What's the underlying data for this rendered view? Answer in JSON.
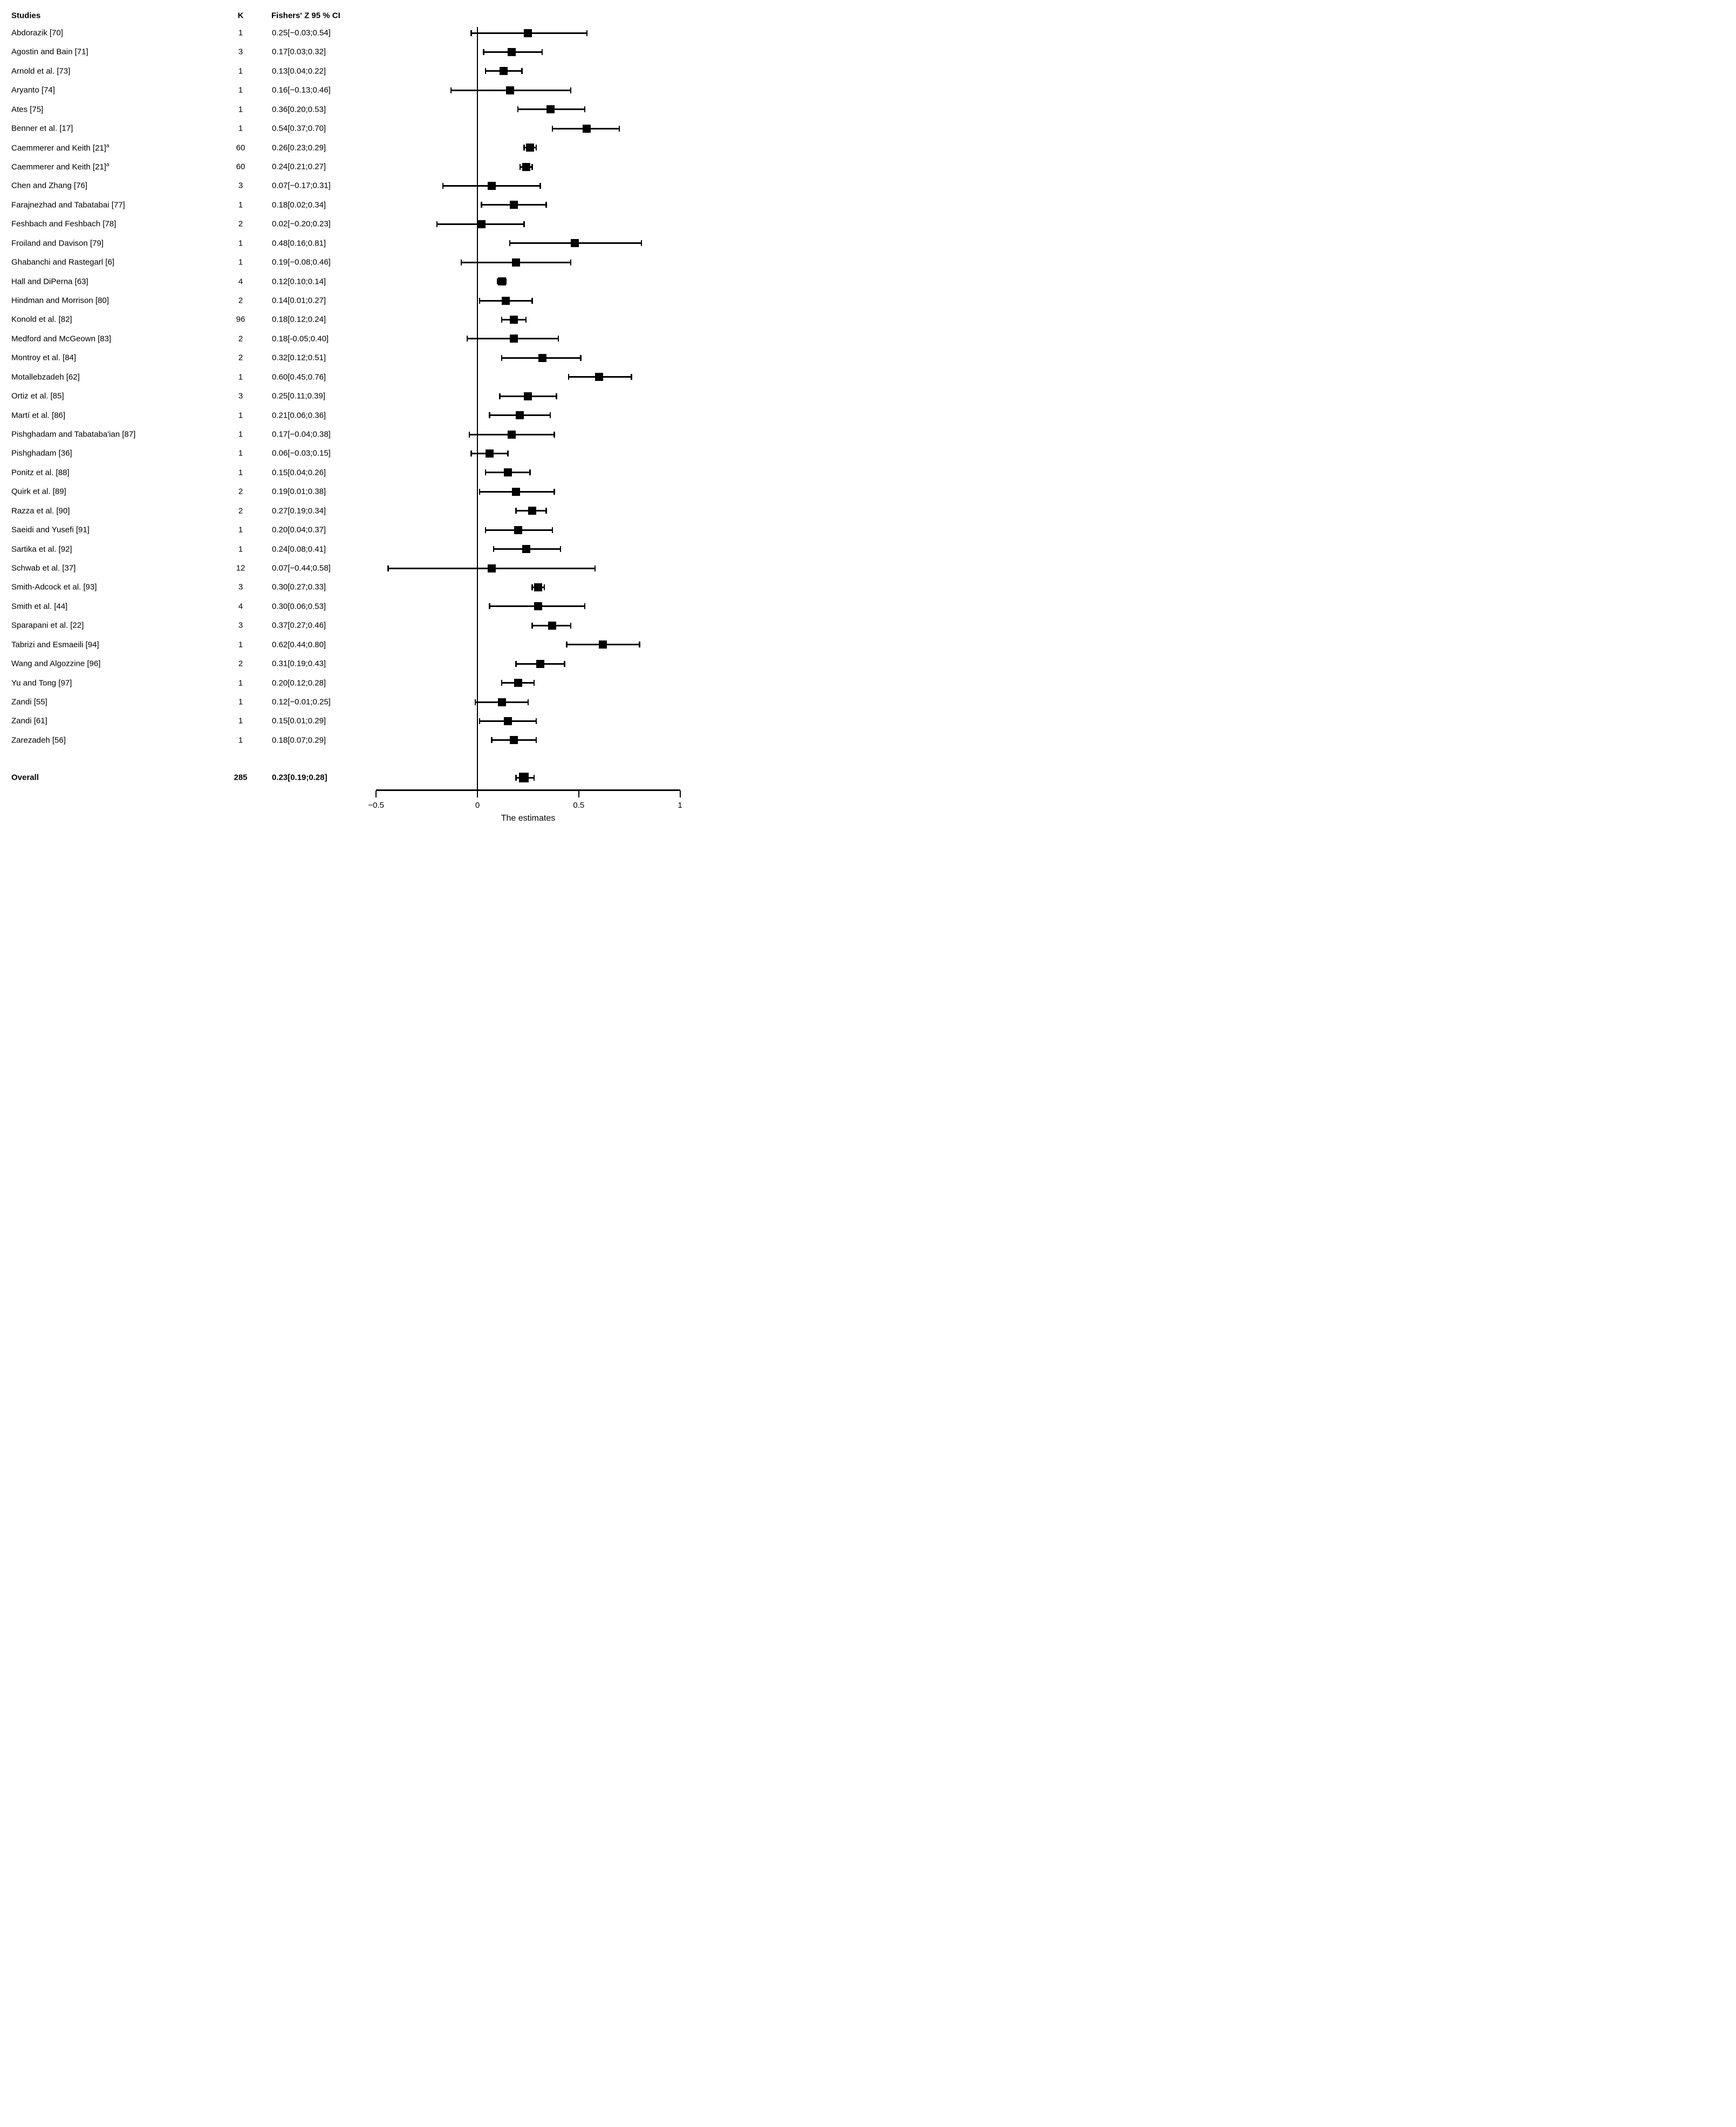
{
  "columns": {
    "studies": "Studies",
    "k": "K",
    "ci": "Fishers' Z 95 % CI"
  },
  "colors": {
    "marker": "#000000",
    "line": "#000000",
    "text": "#000000",
    "background": "#ffffff"
  },
  "chart_data": {
    "type": "forest",
    "xlabel": "The estimates",
    "xlim": [
      -0.5,
      1
    ],
    "x_ticks": [
      {
        "v": -0.5,
        "label": "−0.5"
      },
      {
        "v": 0,
        "label": "0"
      },
      {
        "v": 0.5,
        "label": "0.5"
      },
      {
        "v": 1,
        "label": "1"
      }
    ],
    "studies": [
      {
        "label": "Abdorazik [70]",
        "k": 1,
        "est": 0.25,
        "lo": -0.03,
        "hi": 0.54,
        "ci_text": "0.25[−0.03;0.54]"
      },
      {
        "label": "Agostin and Bain [71]",
        "k": 3,
        "est": 0.17,
        "lo": 0.03,
        "hi": 0.32,
        "ci_text": "0.17[0.03;0.32]"
      },
      {
        "label": "Arnold et al. [73]",
        "k": 1,
        "est": 0.13,
        "lo": 0.04,
        "hi": 0.22,
        "ci_text": "0.13[0.04;0.22]"
      },
      {
        "label": "Aryanto [74]",
        "k": 1,
        "est": 0.16,
        "lo": -0.13,
        "hi": 0.46,
        "ci_text": "0.16[−0.13;0.46]"
      },
      {
        "label": "Ates [75]",
        "k": 1,
        "est": 0.36,
        "lo": 0.2,
        "hi": 0.53,
        "ci_text": "0.36[0.20;0.53]"
      },
      {
        "label": "Benner et al. [17]",
        "k": 1,
        "est": 0.54,
        "lo": 0.37,
        "hi": 0.7,
        "ci_text": "0.54[0.37;0.70]"
      },
      {
        "label": "Caemmerer and Keith [21]",
        "note": "a",
        "k": 60,
        "est": 0.26,
        "lo": 0.23,
        "hi": 0.29,
        "ci_text": "0.26[0.23;0.29]"
      },
      {
        "label": "Caemmerer and Keith [21]",
        "note": "a",
        "k": 60,
        "est": 0.24,
        "lo": 0.21,
        "hi": 0.27,
        "ci_text": "0.24[0.21;0.27]"
      },
      {
        "label": "Chen and Zhang [76]",
        "k": 3,
        "est": 0.07,
        "lo": -0.17,
        "hi": 0.31,
        "ci_text": "0.07[−0.17;0.31]"
      },
      {
        "label": "Farajnezhad and Tabatabai [77]",
        "k": 1,
        "est": 0.18,
        "lo": 0.02,
        "hi": 0.34,
        "ci_text": "0.18[0.02;0.34]"
      },
      {
        "label": "Feshbach and Feshbach [78]",
        "k": 2,
        "est": 0.02,
        "lo": -0.2,
        "hi": 0.23,
        "ci_text": "0.02[−0.20;0.23]"
      },
      {
        "label": "Froiland and Davison [79]",
        "k": 1,
        "est": 0.48,
        "lo": 0.16,
        "hi": 0.81,
        "ci_text": "0.48[0.16;0.81]"
      },
      {
        "label": "Ghabanchi and Rastegarl [6]",
        "k": 1,
        "est": 0.19,
        "lo": -0.08,
        "hi": 0.46,
        "ci_text": "0.19[−0.08;0.46]"
      },
      {
        "label": "Hall and DiPerna [63]",
        "k": 4,
        "est": 0.12,
        "lo": 0.1,
        "hi": 0.14,
        "ci_text": "0.12[0.10;0.14]"
      },
      {
        "label": "Hindman and Morrison [80]",
        "k": 2,
        "est": 0.14,
        "lo": 0.01,
        "hi": 0.27,
        "ci_text": "0.14[0.01;0.27]"
      },
      {
        "label": "Konold et al. [82]",
        "k": 96,
        "est": 0.18,
        "lo": 0.12,
        "hi": 0.24,
        "ci_text": "0.18[0.12;0.24]"
      },
      {
        "label": "Medford and McGeown [83]",
        "k": 2,
        "est": 0.18,
        "lo": -0.05,
        "hi": 0.4,
        "ci_text": "0.18[-0.05;0.40]"
      },
      {
        "label": "Montroy et al. [84]",
        "k": 2,
        "est": 0.32,
        "lo": 0.12,
        "hi": 0.51,
        "ci_text": "0.32[0.12;0.51]"
      },
      {
        "label": "Motallebzadeh [62]",
        "k": 1,
        "est": 0.6,
        "lo": 0.45,
        "hi": 0.76,
        "ci_text": "0.60[0.45;0.76]"
      },
      {
        "label": "Ortiz et al. [85]",
        "k": 3,
        "est": 0.25,
        "lo": 0.11,
        "hi": 0.39,
        "ci_text": "0.25[0.11;0.39]"
      },
      {
        "label": "Martí et al. [86]",
        "k": 1,
        "est": 0.21,
        "lo": 0.06,
        "hi": 0.36,
        "ci_text": "0.21[0.06;0.36]"
      },
      {
        "label": "Pishghadam and Tabataba'ian [87]",
        "k": 1,
        "est": 0.17,
        "lo": -0.04,
        "hi": 0.38,
        "ci_text": "0.17[−0.04;0.38]"
      },
      {
        "label": "Pishghadam [36]",
        "k": 1,
        "est": 0.06,
        "lo": -0.03,
        "hi": 0.15,
        "ci_text": "0.06[−0.03;0.15]"
      },
      {
        "label": "Ponitz et al. [88]",
        "k": 1,
        "est": 0.15,
        "lo": 0.04,
        "hi": 0.26,
        "ci_text": "0.15[0.04;0.26]"
      },
      {
        "label": "Quirk et al. [89]",
        "k": 2,
        "est": 0.19,
        "lo": 0.01,
        "hi": 0.38,
        "ci_text": "0.19[0.01;0.38]"
      },
      {
        "label": "Razza et al. [90]",
        "k": 2,
        "est": 0.27,
        "lo": 0.19,
        "hi": 0.34,
        "ci_text": "0.27[0.19;0.34]"
      },
      {
        "label": "Saeidi and Yusefi [91]",
        "k": 1,
        "est": 0.2,
        "lo": 0.04,
        "hi": 0.37,
        "ci_text": "0.20[0.04;0.37]"
      },
      {
        "label": "Sartika et al. [92]",
        "k": 1,
        "est": 0.24,
        "lo": 0.08,
        "hi": 0.41,
        "ci_text": "0.24[0.08;0.41]"
      },
      {
        "label": "Schwab et al. [37]",
        "k": 12,
        "est": 0.07,
        "lo": -0.44,
        "hi": 0.58,
        "ci_text": "0.07[−0.44;0.58]"
      },
      {
        "label": "Smith-Adcock et al. [93]",
        "k": 3,
        "est": 0.3,
        "lo": 0.27,
        "hi": 0.33,
        "ci_text": "0.30[0.27;0.33]"
      },
      {
        "label": "Smith et al. [44]",
        "k": 4,
        "est": 0.3,
        "lo": 0.06,
        "hi": 0.53,
        "ci_text": "0.30[0.06;0.53]"
      },
      {
        "label": "Sparapani et al. [22]",
        "k": 3,
        "est": 0.37,
        "lo": 0.27,
        "hi": 0.46,
        "ci_text": "0.37[0.27;0.46]"
      },
      {
        "label": "Tabrizi and Esmaeili [94]",
        "k": 1,
        "est": 0.62,
        "lo": 0.44,
        "hi": 0.8,
        "ci_text": "0.62[0.44;0.80]"
      },
      {
        "label": "Wang and Algozzine [96]",
        "k": 2,
        "est": 0.31,
        "lo": 0.19,
        "hi": 0.43,
        "ci_text": "0.31[0.19;0.43]"
      },
      {
        "label": "Yu and Tong [97]",
        "k": 1,
        "est": 0.2,
        "lo": 0.12,
        "hi": 0.28,
        "ci_text": "0.20[0.12;0.28]"
      },
      {
        "label": "Zandi [55]",
        "k": 1,
        "est": 0.12,
        "lo": -0.01,
        "hi": 0.25,
        "ci_text": "0.12[−0.01;0.25]"
      },
      {
        "label": "Zandi [61]",
        "k": 1,
        "est": 0.15,
        "lo": 0.01,
        "hi": 0.29,
        "ci_text": "0.15[0.01;0.29]"
      },
      {
        "label": "Zarezadeh [56]",
        "k": 1,
        "est": 0.18,
        "lo": 0.07,
        "hi": 0.29,
        "ci_text": "0.18[0.07;0.29]"
      }
    ],
    "overall": {
      "label": "Overall",
      "k": 285,
      "est": 0.23,
      "lo": 0.19,
      "hi": 0.28,
      "ci_text": "0.23[0.19;0.28]"
    }
  }
}
